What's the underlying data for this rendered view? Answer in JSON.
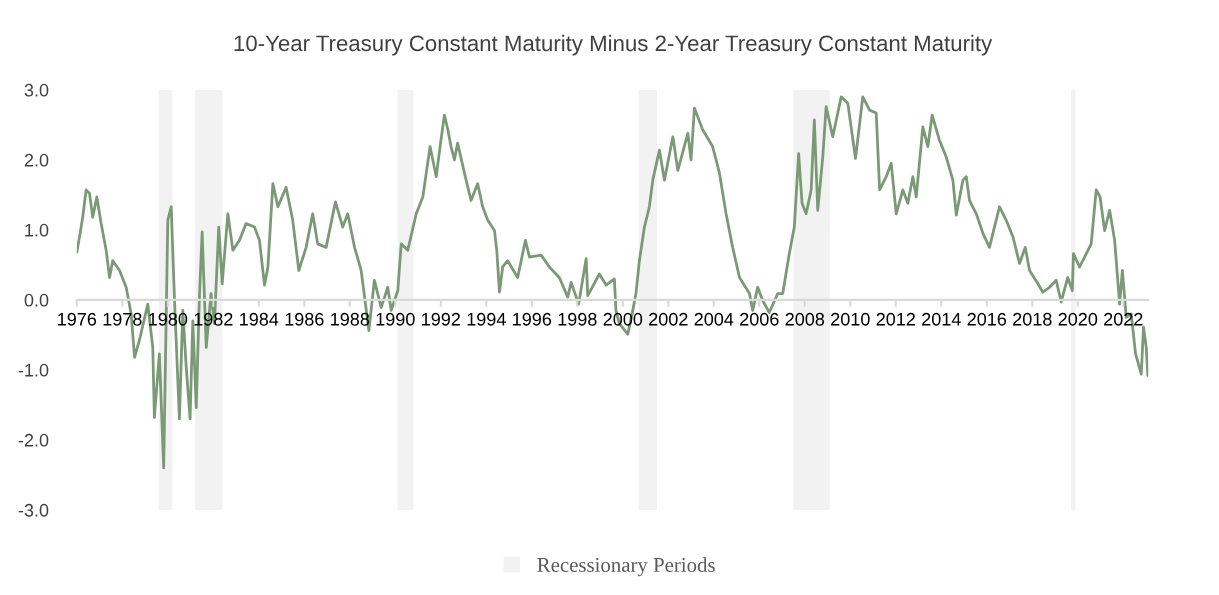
{
  "chart_data": {
    "type": "line",
    "title": "10-Year Treasury Constant Maturity Minus 2-Year Treasury Constant Maturity",
    "x": [
      1976.0,
      1976.12,
      1976.26,
      1976.41,
      1976.56,
      1976.7,
      1976.88,
      1977.07,
      1977.29,
      1977.44,
      1977.58,
      1977.88,
      1978.17,
      1978.39,
      1978.54,
      1978.75,
      1979.12,
      1979.34,
      1979.41,
      1979.63,
      1979.82,
      1980.0,
      1980.15,
      1980.29,
      1980.51,
      1980.66,
      1980.81,
      1980.98,
      1981.1,
      1981.25,
      1981.39,
      1981.51,
      1981.69,
      1981.9,
      1982.05,
      1982.24,
      1982.39,
      1982.64,
      1982.86,
      1983.15,
      1983.44,
      1983.81,
      1984.03,
      1984.25,
      1984.4,
      1984.62,
      1984.84,
      1985.2,
      1985.49,
      1985.76,
      1986.08,
      1986.37,
      1986.59,
      1986.96,
      1987.37,
      1987.69,
      1987.91,
      1988.21,
      1988.5,
      1988.84,
      1989.08,
      1989.38,
      1989.67,
      1989.82,
      1990.11,
      1990.26,
      1990.55,
      1990.92,
      1991.21,
      1991.53,
      1991.8,
      1992.01,
      1992.16,
      1992.31,
      1992.45,
      1992.6,
      1992.74,
      1993.04,
      1993.33,
      1993.62,
      1993.84,
      1994.06,
      1994.36,
      1994.46,
      1994.58,
      1994.72,
      1994.94,
      1995.38,
      1995.72,
      1995.9,
      1996.41,
      1996.77,
      1997.21,
      1997.58,
      1997.73,
      1998.06,
      1998.39,
      1998.46,
      1998.97,
      1999.27,
      1999.63,
      1999.7,
      1999.85,
      2000.22,
      2000.44,
      2000.58,
      2000.73,
      2000.95,
      2001.17,
      2001.32,
      2001.61,
      2001.83,
      2002.2,
      2002.42,
      2002.86,
      2003.0,
      2003.15,
      2003.51,
      2003.95,
      2004.25,
      2004.54,
      2004.83,
      2005.13,
      2005.57,
      2005.71,
      2005.93,
      2006.15,
      2006.44,
      2006.81,
      2007.03,
      2007.32,
      2007.54,
      2007.73,
      2007.88,
      2008.06,
      2008.28,
      2008.42,
      2008.57,
      2008.79,
      2008.94,
      2009.23,
      2009.6,
      2009.89,
      2010.23,
      2010.55,
      2010.85,
      2011.14,
      2011.29,
      2011.58,
      2011.8,
      2012.02,
      2012.31,
      2012.53,
      2012.75,
      2012.9,
      2013.19,
      2013.41,
      2013.6,
      2013.92,
      2014.22,
      2014.51,
      2014.66,
      2014.95,
      2015.1,
      2015.24,
      2015.54,
      2015.83,
      2016.12,
      2016.27,
      2016.56,
      2016.85,
      2017.15,
      2017.44,
      2017.69,
      2017.88,
      2018.25,
      2018.46,
      2018.76,
      2019.05,
      2019.27,
      2019.56,
      2019.76,
      2019.81,
      2020.08,
      2020.59,
      2020.81,
      2020.98,
      2021.18,
      2021.4,
      2021.62,
      2021.84,
      2021.96,
      2022.13,
      2022.35,
      2022.54,
      2022.79,
      2022.89,
      2023.01,
      2023.08
    ],
    "series": [
      {
        "color": "#7a9a76",
        "values": [
          0.68,
          0.9,
          1.18,
          1.57,
          1.52,
          1.18,
          1.47,
          1.09,
          0.71,
          0.32,
          0.56,
          0.42,
          0.18,
          -0.2,
          -0.82,
          -0.58,
          -0.06,
          -0.68,
          -1.68,
          -0.77,
          -2.4,
          1.14,
          1.33,
          0.04,
          -1.7,
          -0.15,
          -0.96,
          -1.7,
          -0.3,
          -1.54,
          0.04,
          0.97,
          -0.68,
          0.09,
          -0.34,
          1.04,
          0.23,
          1.23,
          0.71,
          0.85,
          1.09,
          1.04,
          0.85,
          0.21,
          0.47,
          1.66,
          1.33,
          1.61,
          1.14,
          0.42,
          0.75,
          1.23,
          0.8,
          0.75,
          1.4,
          1.04,
          1.23,
          0.75,
          0.42,
          -0.44,
          0.28,
          -0.11,
          0.18,
          -0.15,
          0.13,
          0.8,
          0.71,
          1.23,
          1.47,
          2.19,
          1.76,
          2.29,
          2.64,
          2.43,
          2.19,
          2.0,
          2.24,
          1.81,
          1.42,
          1.66,
          1.33,
          1.14,
          0.99,
          0.71,
          0.11,
          0.47,
          0.56,
          0.32,
          0.85,
          0.61,
          0.64,
          0.47,
          0.32,
          0.04,
          0.25,
          -0.06,
          0.59,
          0.06,
          0.37,
          0.21,
          0.3,
          -0.15,
          -0.34,
          -0.49,
          -0.15,
          0.09,
          0.56,
          1.04,
          1.33,
          1.71,
          2.14,
          1.71,
          2.33,
          1.85,
          2.38,
          2.0,
          2.74,
          2.43,
          2.19,
          1.81,
          1.23,
          0.75,
          0.32,
          0.09,
          -0.15,
          0.18,
          -0.01,
          -0.18,
          0.09,
          0.09,
          0.66,
          1.04,
          2.09,
          1.38,
          1.23,
          1.57,
          2.57,
          1.28,
          2.04,
          2.76,
          2.33,
          2.9,
          2.81,
          2.02,
          2.9,
          2.71,
          2.67,
          1.57,
          1.76,
          1.95,
          1.23,
          1.57,
          1.38,
          1.76,
          1.47,
          2.47,
          2.19,
          2.64,
          2.28,
          2.04,
          1.71,
          1.21,
          1.71,
          1.76,
          1.42,
          1.23,
          0.95,
          0.75,
          0.95,
          1.33,
          1.14,
          0.9,
          0.52,
          0.75,
          0.42,
          0.23,
          0.11,
          0.18,
          0.28,
          -0.03,
          0.32,
          0.13,
          0.66,
          0.47,
          0.8,
          1.57,
          1.47,
          0.99,
          1.28,
          0.85,
          -0.06,
          0.42,
          -0.25,
          -0.2,
          -0.77,
          -1.06,
          -0.39,
          -0.68,
          -1.08
        ]
      }
    ],
    "xlim": [
      1976,
      2023.1
    ],
    "xticks": [
      1976,
      1978,
      1980,
      1982,
      1984,
      1986,
      1988,
      1990,
      1992,
      1994,
      1996,
      1998,
      2000,
      2002,
      2004,
      2006,
      2008,
      2010,
      2012,
      2014,
      2016,
      2018,
      2020,
      2022
    ],
    "ylim": [
      -3,
      3
    ],
    "yticks": [
      {
        "value": -3,
        "label": "-3.0"
      },
      {
        "value": -2,
        "label": "-2.0"
      },
      {
        "value": -1,
        "label": "-1.0"
      },
      {
        "value": 0,
        "label": "0.0"
      },
      {
        "value": 1,
        "label": "1.0"
      },
      {
        "value": 2,
        "label": "2.0"
      },
      {
        "value": 3,
        "label": "3.0"
      }
    ],
    "bands": [
      {
        "axis": "x",
        "from": 1979.6,
        "to": 1980.2,
        "label": "Recessionary Periods",
        "color": "#f2f2f2"
      },
      {
        "axis": "x",
        "from": 1981.2,
        "to": 1982.4,
        "color": "#f2f2f2"
      },
      {
        "axis": "x",
        "from": 1990.1,
        "to": 1990.8,
        "color": "#f2f2f2"
      },
      {
        "axis": "x",
        "from": 2000.7,
        "to": 2001.5,
        "color": "#f2f2f2"
      },
      {
        "axis": "x",
        "from": 2007.5,
        "to": 2009.1,
        "color": "#f2f2f2"
      },
      {
        "axis": "x",
        "from": 2019.7,
        "to": 2019.9,
        "color": "#f2f2f2"
      }
    ],
    "grid": false,
    "legend": "bottom"
  }
}
